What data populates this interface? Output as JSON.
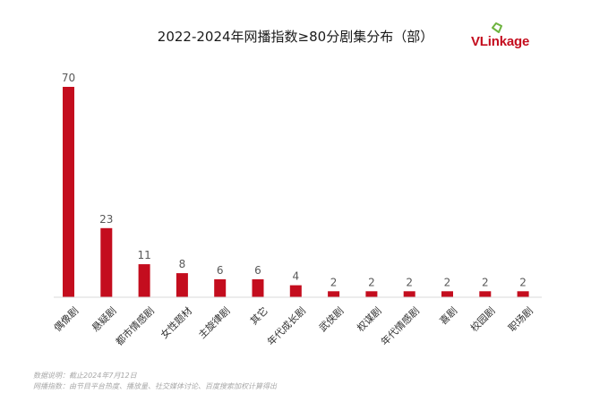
{
  "title": "2022-2024年网播指数≥80分剧集分布（部）",
  "brand": {
    "logo_text": "VLinkage",
    "colors": {
      "primary": "#c40d1e",
      "accent": "#6db33f"
    }
  },
  "notes": {
    "line1": "数据说明：截止2024年7月12日",
    "line2": "网播指数：由节目平台热度、播放量、社交媒体讨论、百度搜索加权计算得出"
  },
  "chart_data": {
    "type": "bar",
    "title": "2022-2024年网播指数≥80分剧集分布（部）",
    "xlabel": "",
    "ylabel": "",
    "categories": [
      "偶像剧",
      "悬疑剧",
      "都市情感剧",
      "女性题材",
      "主旋律剧",
      "其它",
      "年代成长剧",
      "武侠剧",
      "权谋剧",
      "年代情感剧",
      "喜剧",
      "校园剧",
      "职场剧"
    ],
    "values": [
      70,
      23,
      11,
      8,
      6,
      6,
      4,
      2,
      2,
      2,
      2,
      2,
      2
    ],
    "ylim": [
      0,
      70
    ],
    "bar_color": "#c40d1e",
    "grid": false,
    "legend": "none",
    "data_labels": true
  }
}
